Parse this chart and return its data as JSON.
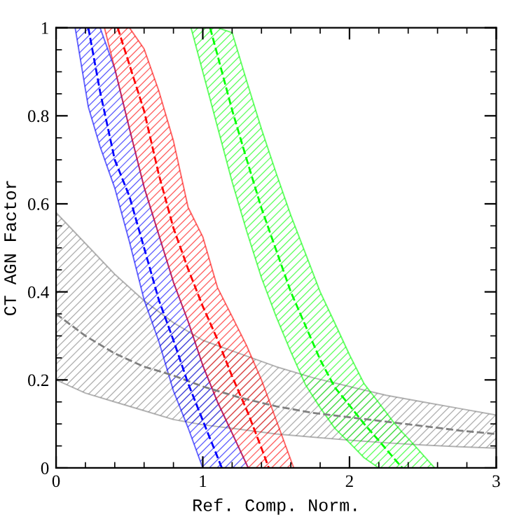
{
  "chart_data": {
    "type": "line",
    "xlabel": "Ref. Comp. Norm.",
    "ylabel": "CT AGN Factor",
    "xlim": [
      0,
      3
    ],
    "ylim": [
      0,
      1
    ],
    "xticks": [
      0,
      1,
      2,
      3
    ],
    "yticks": [
      0,
      0.2,
      0.4,
      0.6,
      0.8,
      1
    ],
    "grid": false,
    "marker": "none",
    "series": [
      {
        "color": "#808080",
        "line_style": "dashed",
        "x": [
          0,
          0.2,
          0.4,
          0.6,
          0.8,
          1.0,
          1.25,
          1.5,
          1.75,
          2.0,
          2.25,
          2.5,
          2.75,
          3.0
        ],
        "values": [
          0.35,
          0.3,
          0.26,
          0.23,
          0.21,
          0.185,
          0.16,
          0.14,
          0.125,
          0.115,
          0.105,
          0.095,
          0.085,
          0.077
        ],
        "lower": [
          0.2,
          0.17,
          0.15,
          0.13,
          0.11,
          0.098,
          0.088,
          0.077,
          0.07,
          0.063,
          0.057,
          0.052,
          0.048,
          0.045
        ],
        "upper": [
          0.58,
          0.51,
          0.44,
          0.38,
          0.33,
          0.29,
          0.26,
          0.23,
          0.205,
          0.185,
          0.165,
          0.15,
          0.135,
          0.12
        ]
      },
      {
        "color": "#0000ff",
        "line_style": "dashed",
        "x": [
          0.13,
          0.2,
          0.22,
          0.3,
          0.4,
          0.5,
          0.6,
          0.7,
          0.8,
          0.9,
          1.0,
          1.1,
          1.13,
          1.2,
          1.31
        ],
        "values": [
          null,
          null,
          1,
          0.855,
          0.7,
          0.617,
          0.5,
          0.382,
          0.29,
          0.192,
          0.108,
          0.025,
          0,
          null,
          null
        ],
        "lower": [
          1,
          0.86,
          0.82,
          0.73,
          0.636,
          0.514,
          0.382,
          0.288,
          0.175,
          0.091,
          0,
          0,
          0,
          0,
          0
        ],
        "upper": [
          1,
          1,
          1,
          1,
          0.907,
          0.771,
          0.638,
          0.53,
          0.422,
          0.333,
          0.233,
          0.15,
          0.129,
          0.079,
          0
        ]
      },
      {
        "color": "#ff0000",
        "line_style": "dashed",
        "x": [
          0.33,
          0.4,
          0.42,
          0.5,
          0.6,
          0.7,
          0.8,
          0.9,
          1.0,
          1.1,
          1.2,
          1.3,
          1.31,
          1.4,
          1.45,
          1.5,
          1.62
        ],
        "values": [
          null,
          null,
          1,
          0.916,
          0.811,
          0.667,
          0.545,
          0.452,
          0.367,
          0.292,
          0.208,
          0.131,
          0.123,
          0.045,
          0,
          null,
          null
        ],
        "lower": [
          1,
          0.907,
          0.88,
          0.771,
          0.638,
          0.53,
          0.422,
          0.333,
          0.233,
          0.15,
          0.079,
          0.007,
          0,
          0,
          0,
          0,
          0
        ],
        "upper": [
          1,
          1,
          1,
          1,
          0.952,
          0.857,
          0.743,
          0.592,
          0.525,
          0.41,
          0.344,
          0.277,
          0.269,
          0.2,
          0.155,
          0.109,
          0
        ]
      },
      {
        "color": "#00ff00",
        "line_style": "dashed",
        "x": [
          0.92,
          1.0,
          1.05,
          1.1,
          1.2,
          1.3,
          1.4,
          1.5,
          1.6,
          1.7,
          1.8,
          1.9,
          2.0,
          2.1,
          2.2,
          2.3,
          2.36,
          2.4,
          2.5,
          2.58
        ],
        "values": [
          null,
          null,
          1,
          0.938,
          0.813,
          0.7,
          0.59,
          0.495,
          0.4,
          0.323,
          0.246,
          0.183,
          0.142,
          0.1,
          0.062,
          0.023,
          0,
          null,
          null,
          null
        ],
        "lower": [
          1,
          0.9,
          0.838,
          0.775,
          0.65,
          0.537,
          0.432,
          0.344,
          0.264,
          0.189,
          0.137,
          0.09,
          0.057,
          0.023,
          0,
          0,
          0,
          0,
          0,
          0
        ],
        "upper": [
          1,
          1,
          1,
          1,
          0.989,
          0.878,
          0.77,
          0.67,
          0.574,
          0.487,
          0.4,
          0.329,
          0.257,
          0.191,
          0.148,
          0.104,
          0.081,
          0.067,
          0.03,
          0
        ]
      }
    ]
  }
}
